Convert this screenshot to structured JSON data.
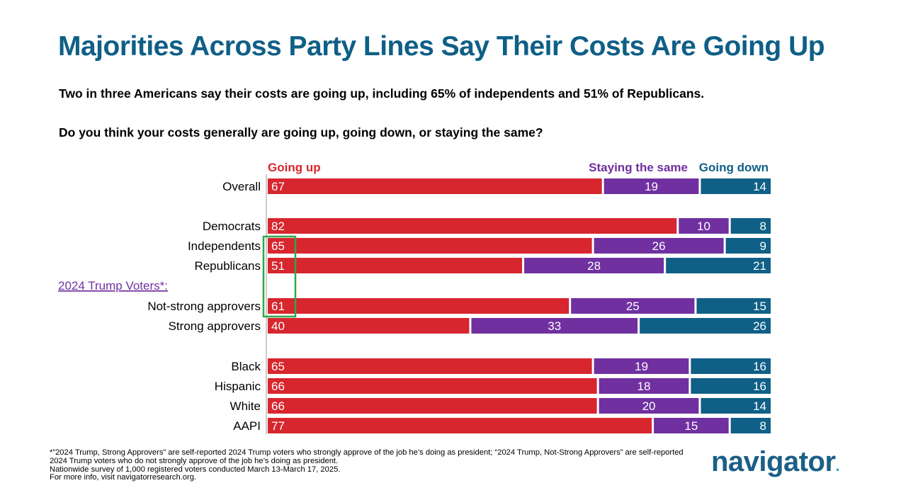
{
  "title": "Majorities Across Party Lines Say Their Costs Are Going Up",
  "subtitle": "Two in three Americans say their costs are going up, including 65% of independents and 51% of Republicans.",
  "question": "Do you think your costs generally are going up, going down, or staying the same?",
  "chart_data": {
    "type": "bar",
    "orientation": "horizontal",
    "stacked": true,
    "legend_placement": "top",
    "xlim": [
      0,
      100
    ],
    "series": [
      {
        "name": "Going up",
        "color": "#d7262e"
      },
      {
        "name": "Staying the same",
        "color": "#7030a0"
      },
      {
        "name": "Going down",
        "color": "#0f5f86"
      }
    ],
    "section_label": {
      "text": "2024 Trump Voters*:",
      "color": "#7030a0"
    },
    "rows": [
      {
        "label": "Overall",
        "values": [
          67,
          19,
          14
        ]
      },
      {
        "label": "Democrats",
        "values": [
          82,
          10,
          8
        ]
      },
      {
        "label": "Independents",
        "values": [
          65,
          26,
          9
        ]
      },
      {
        "label": "Republicans",
        "values": [
          51,
          28,
          21
        ]
      },
      {
        "label": "Not-strong approvers",
        "values": [
          61,
          25,
          15
        ]
      },
      {
        "label": "Strong approvers",
        "values": [
          40,
          33,
          26
        ]
      },
      {
        "label": "Black",
        "values": [
          65,
          19,
          16
        ]
      },
      {
        "label": "Hispanic",
        "values": [
          66,
          18,
          16
        ]
      },
      {
        "label": "White",
        "values": [
          66,
          20,
          14
        ]
      },
      {
        "label": "AAPI",
        "values": [
          77,
          15,
          8
        ]
      }
    ],
    "highlight": {
      "rows": [
        "Independents",
        "Republicans",
        "Not-strong approvers"
      ],
      "series": "Going up",
      "color": "#2ea84a"
    }
  },
  "footnote": [
    "*”2024 Trump, Strong Approvers” are self-reported 2024 Trump voters who strongly approve of the job he’s doing as president; “2024 Trump, Not-Strong Approvers” are self-reported 2024 Trump voters who do not strongly approve of the job he’s doing as president.",
    "Nationwide survey of 1,000 registered voters conducted March 13-March 17, 2025.",
    "For more info, visit navigatorresearch.org."
  ],
  "logo": {
    "text": "navigator",
    "dot": "."
  }
}
